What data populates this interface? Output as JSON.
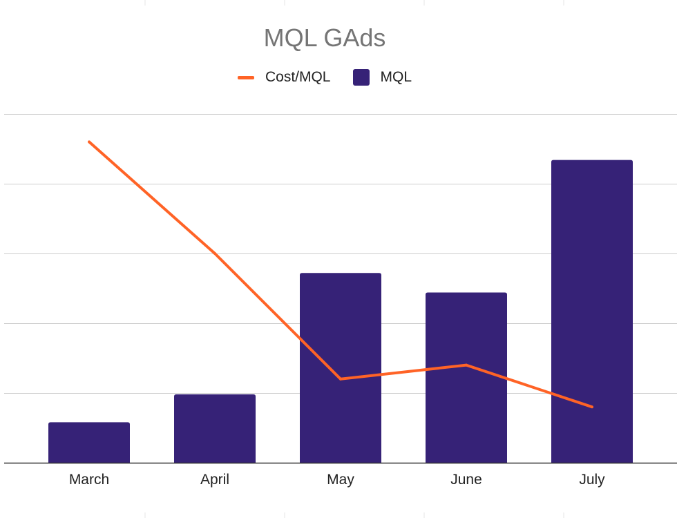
{
  "chart_data": {
    "type": "bar",
    "title": "MQL GAds",
    "xlabel": "",
    "ylabel": "",
    "categories": [
      "March",
      "April",
      "May",
      "June",
      "July"
    ],
    "grid": true,
    "legend_position": "top",
    "series": [
      {
        "name": "Cost/MQL",
        "type": "line",
        "color": "#ff6326",
        "values": [
          4.6,
          3.0,
          1.2,
          1.4,
          0.8
        ]
      },
      {
        "name": "MQL",
        "type": "bar",
        "color": "#362277",
        "values": [
          0.58,
          0.98,
          2.72,
          2.44,
          4.34
        ]
      }
    ],
    "ylim": [
      0,
      5
    ]
  }
}
